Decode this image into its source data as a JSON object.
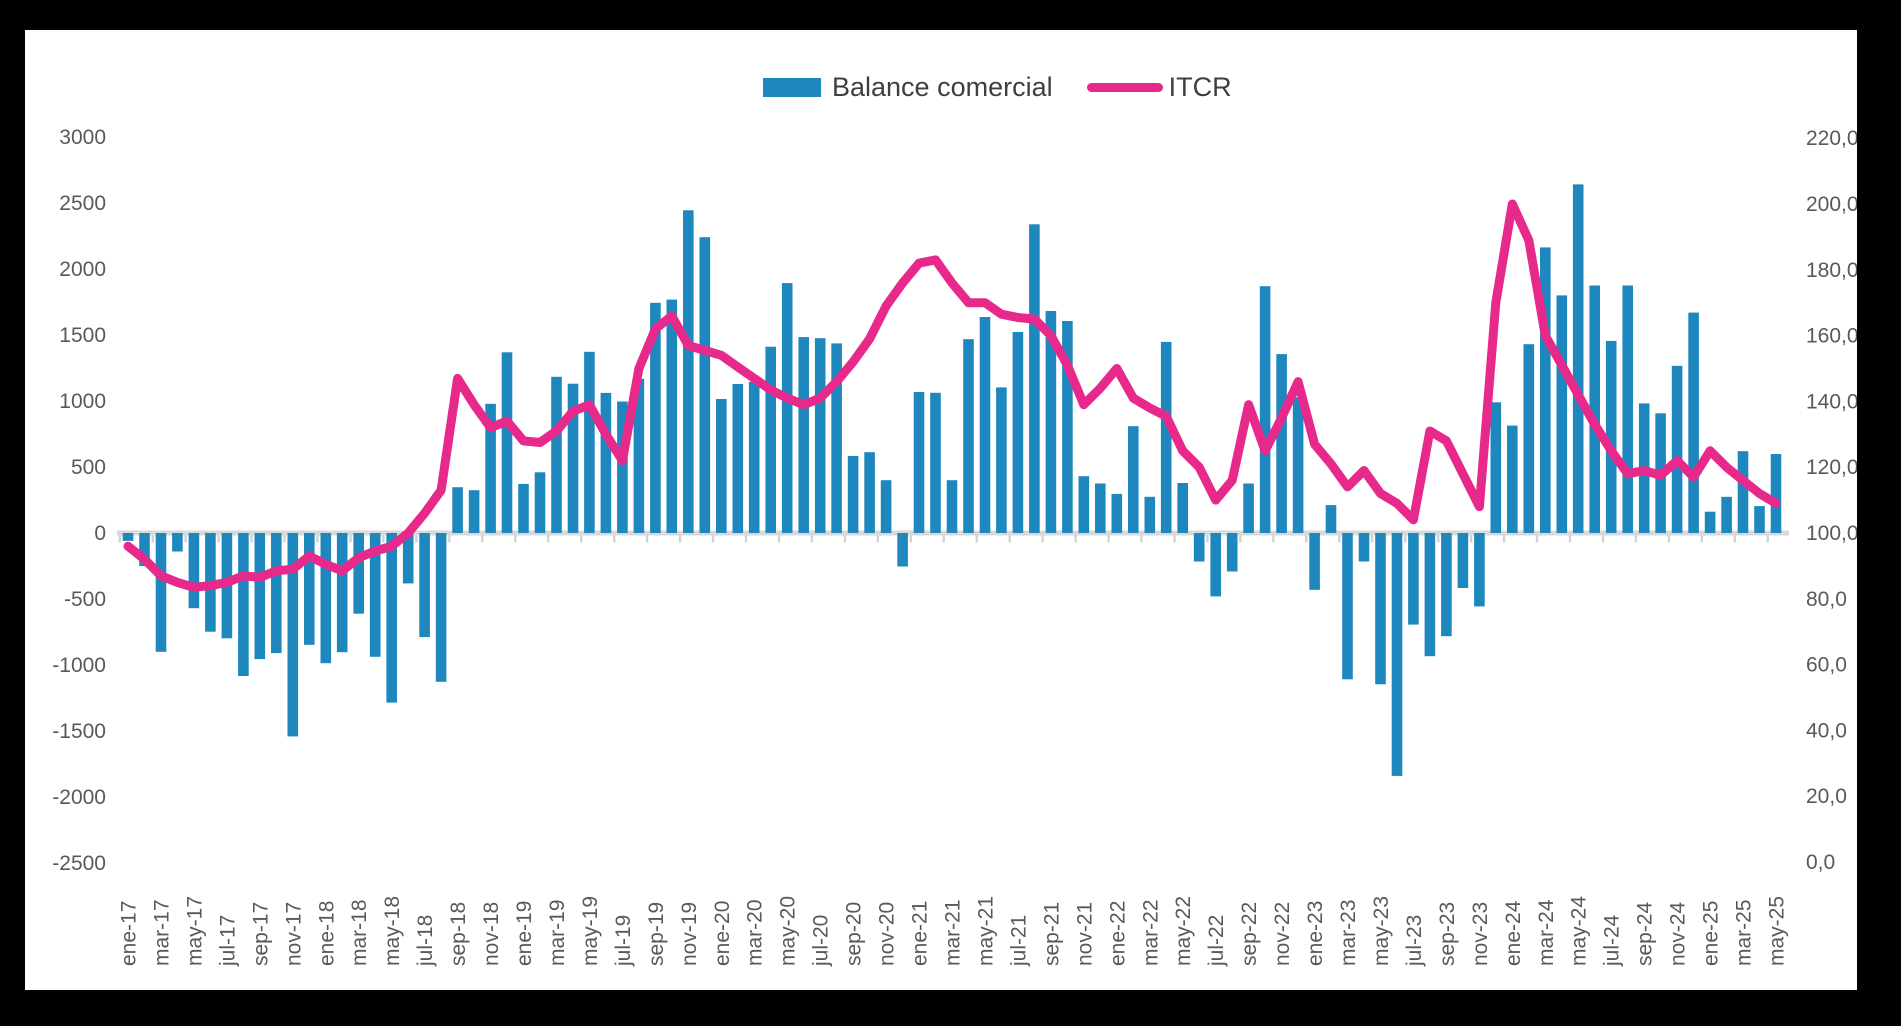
{
  "frame": {
    "background": "#000000",
    "panel_background": "#FFFFFF"
  },
  "legend": {
    "items": [
      {
        "label": "Balance comercial",
        "type": "bar",
        "color": "#1E87BD"
      },
      {
        "label": "ITCR",
        "type": "line",
        "color": "#E7298C"
      }
    ]
  },
  "axes": {
    "left_ticks": [
      "3000",
      "2500",
      "2000",
      "1500",
      "1000",
      "500",
      "0",
      "-500",
      "-1000",
      "-1500",
      "-2000",
      "-2500"
    ],
    "right_ticks": [
      "220,0",
      "200,0",
      "180,0",
      "160,0",
      "140,0",
      "120,0",
      "100,0",
      "80,0",
      "60,0",
      "40,0",
      "20,0",
      "0,0"
    ],
    "text_color": "#595959"
  },
  "chart_data": {
    "type": "combo",
    "title": "",
    "grid": false,
    "legend_position": "top",
    "left_axis": {
      "min": -2500,
      "max": 3000,
      "step": 500
    },
    "right_axis": {
      "min": 0.0,
      "max": 220.0,
      "step": 20.0
    },
    "x_label_every": 2,
    "categories": [
      "ene-17",
      "feb-17",
      "mar-17",
      "abr-17",
      "may-17",
      "jun-17",
      "jul-17",
      "ago-17",
      "sep-17",
      "oct-17",
      "nov-17",
      "dic-17",
      "ene-18",
      "feb-18",
      "mar-18",
      "abr-18",
      "may-18",
      "jun-18",
      "jul-18",
      "ago-18",
      "sep-18",
      "oct-18",
      "nov-18",
      "dic-18",
      "ene-19",
      "feb-19",
      "mar-19",
      "abr-19",
      "may-19",
      "jun-19",
      "jul-19",
      "ago-19",
      "sep-19",
      "oct-19",
      "nov-19",
      "dic-19",
      "ene-20",
      "feb-20",
      "mar-20",
      "abr-20",
      "may-20",
      "jun-20",
      "jul-20",
      "ago-20",
      "sep-20",
      "oct-20",
      "nov-20",
      "dic-20",
      "ene-21",
      "feb-21",
      "mar-21",
      "abr-21",
      "may-21",
      "jun-21",
      "jul-21",
      "ago-21",
      "sep-21",
      "oct-21",
      "nov-21",
      "dic-21",
      "ene-22",
      "feb-22",
      "mar-22",
      "abr-22",
      "may-22",
      "jun-22",
      "jul-22",
      "ago-22",
      "sep-22",
      "oct-22",
      "nov-22",
      "dic-22",
      "ene-23",
      "feb-23",
      "mar-23",
      "abr-23",
      "may-23",
      "jun-23",
      "jul-23",
      "ago-23",
      "sep-23",
      "oct-23",
      "nov-23",
      "dic-23",
      "ene-24",
      "feb-24",
      "mar-24",
      "abr-24",
      "may-24",
      "jun-24",
      "jul-24",
      "ago-24",
      "sep-24",
      "oct-24",
      "nov-24",
      "dic-24",
      "ene-25",
      "feb-25",
      "mar-25",
      "abr-25",
      "may-25"
    ],
    "series": [
      {
        "name": "Balance comercial",
        "type": "bar",
        "axis": "left",
        "color": "#1E87BD",
        "values": [
          -60,
          -250,
          -900,
          -140,
          -570,
          -748,
          -798,
          -1083,
          -955,
          -910,
          -1541,
          -847,
          -986,
          -903,
          -611,
          -938,
          -1285,
          -382,
          -789,
          -1127,
          347,
          324,
          979,
          1369,
          372,
          460,
          1183,
          1131,
          1373,
          1061,
          996,
          1168,
          1744,
          1768,
          2445,
          2241,
          1015,
          1129,
          1145,
          1411,
          1893,
          1484,
          1476,
          1436,
          584,
          612,
          400,
          -254,
          1068,
          1062,
          400,
          1468,
          1636,
          1103,
          1523,
          2339,
          1682,
          1606,
          430,
          375,
          296,
          809,
          274,
          1448,
          379,
          -216,
          -480,
          -292,
          375,
          1870,
          1355,
          1028,
          -430,
          211,
          -1108,
          -216,
          -1146,
          -1840,
          -694,
          -933,
          -782,
          -417,
          -556,
          990,
          814,
          1430,
          2164,
          1800,
          2641,
          1875,
          1455,
          1875,
          982,
          907,
          1267,
          1670,
          161,
          274,
          620,
          204,
          598
        ]
      },
      {
        "name": "ITCR",
        "type": "line",
        "axis": "right",
        "color": "#E7298C",
        "values": [
          96,
          92,
          87,
          85,
          83.5,
          84,
          85,
          87,
          86.5,
          88.5,
          89,
          93,
          90.5,
          88.5,
          92.5,
          94.5,
          96,
          100,
          106,
          113,
          147,
          139,
          132,
          134,
          128,
          127.5,
          131,
          137,
          139,
          130,
          122,
          150,
          162,
          166,
          157,
          155.5,
          154,
          150.5,
          147,
          143.5,
          141,
          139,
          141,
          146,
          152,
          159,
          169,
          176,
          182,
          183,
          176,
          170,
          170,
          166.5,
          165.5,
          165,
          160,
          151,
          139,
          144,
          150,
          141,
          138,
          135.5,
          125,
          120,
          110,
          116,
          139,
          125,
          135,
          146,
          127,
          121,
          114,
          119,
          112,
          109,
          104,
          131,
          128,
          118,
          108,
          170,
          200,
          189,
          160,
          151,
          142,
          133,
          125,
          118,
          119,
          117.5,
          122,
          117,
          125,
          120,
          116,
          112,
          109
        ]
      }
    ]
  }
}
